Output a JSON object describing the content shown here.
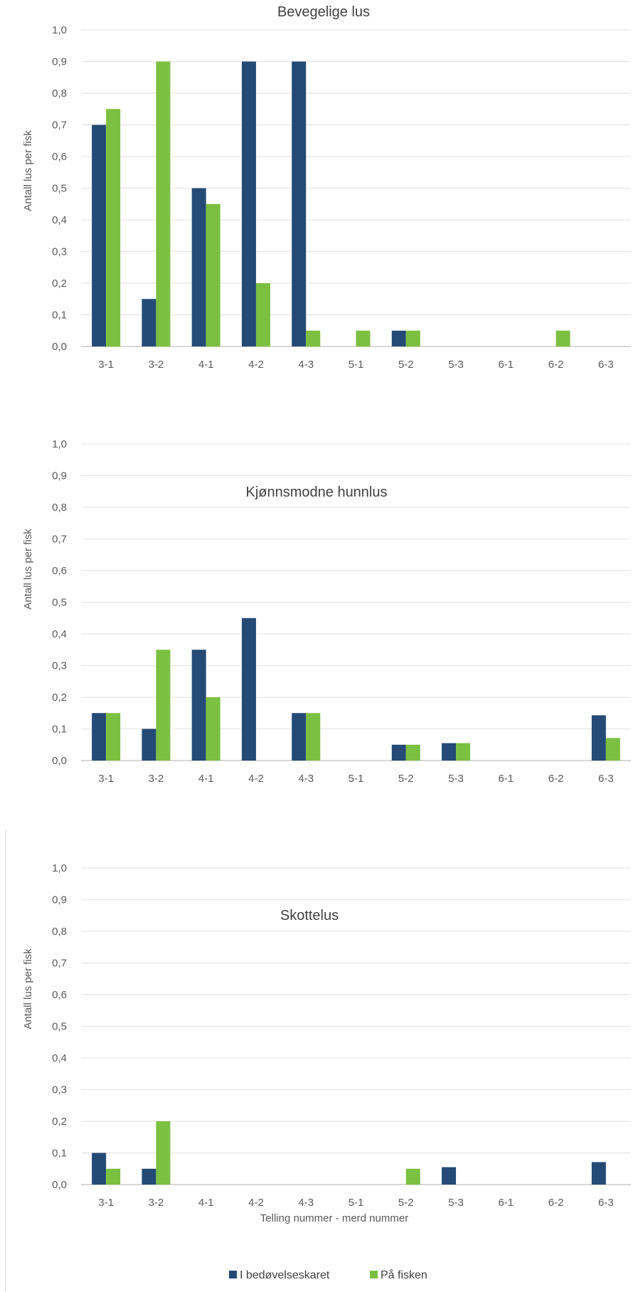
{
  "chart_data": [
    {
      "type": "bar",
      "title": "Bevegelige lus",
      "ylabel": "Antall lus per fisk",
      "xlabel": "",
      "ylim": [
        0,
        1.0
      ],
      "yticks": [
        "0,0",
        "0,1",
        "0,2",
        "0,3",
        "0,4",
        "0,5",
        "0,6",
        "0,7",
        "0,8",
        "0,9",
        "1,0"
      ],
      "grid": true,
      "categories": [
        "3-1",
        "3-2",
        "4-1",
        "4-2",
        "4-3",
        "5-1",
        "5-2",
        "5-3",
        "6-1",
        "6-2",
        "6-3"
      ],
      "series": [
        {
          "name": "I bedøvelseskaret",
          "values": [
            0.7,
            0.15,
            0.5,
            0.9,
            0.9,
            0,
            0.05,
            0,
            0,
            0,
            0
          ]
        },
        {
          "name": "På fisken",
          "values": [
            0.75,
            0.9,
            0.45,
            0.2,
            0.05,
            0.05,
            0.05,
            0,
            0,
            0.05,
            0
          ]
        }
      ]
    },
    {
      "type": "bar",
      "title": "Kjønnsmodne hunnlus",
      "ylabel": "Antall lus per fisk",
      "xlabel": "",
      "ylim": [
        0,
        1.0
      ],
      "yticks": [
        "0,0",
        "0,1",
        "0,2",
        "0,3",
        "0,4",
        "0,5",
        "0,6",
        "0,7",
        "0,8",
        "0,9",
        "1,0"
      ],
      "grid": true,
      "categories": [
        "3-1",
        "3-2",
        "4-1",
        "4-2",
        "4-3",
        "5-1",
        "5-2",
        "5-3",
        "6-1",
        "6-2",
        "6-3"
      ],
      "series": [
        {
          "name": "I bedøvelseskaret",
          "values": [
            0.15,
            0.1,
            0.35,
            0.45,
            0.15,
            0,
            0.05,
            0.055,
            0,
            0,
            0.143
          ]
        },
        {
          "name": "På fisken",
          "values": [
            0.15,
            0.35,
            0.2,
            0,
            0.15,
            0,
            0.05,
            0.055,
            0,
            0,
            0.071
          ]
        }
      ]
    },
    {
      "type": "bar",
      "title": "Skottelus",
      "ylabel": "Antall lus per fisk",
      "xlabel": "Telling nummer - merd nummer",
      "ylim": [
        0,
        1.0
      ],
      "yticks": [
        "0,0",
        "0,1",
        "0,2",
        "0,3",
        "0,4",
        "0,5",
        "0,6",
        "0,7",
        "0,8",
        "0,9",
        "1,0"
      ],
      "grid": true,
      "categories": [
        "3-1",
        "3-2",
        "4-1",
        "4-2",
        "4-3",
        "5-1",
        "5-2",
        "5-3",
        "6-1",
        "6-2",
        "6-3"
      ],
      "series": [
        {
          "name": "I bedøvelseskaret",
          "values": [
            0.1,
            0.05,
            0,
            0,
            0,
            0,
            0,
            0.055,
            0,
            0,
            0.071
          ]
        },
        {
          "name": "På fisken",
          "values": [
            0.05,
            0.2,
            0,
            0,
            0,
            0,
            0.05,
            0,
            0,
            0,
            0
          ]
        }
      ]
    }
  ],
  "legend": {
    "position": "bottom",
    "items": [
      {
        "label": "I bedøvelseskaret",
        "color": "#254a76"
      },
      {
        "label": "På fisken",
        "color": "#7cc041"
      }
    ]
  },
  "colors": {
    "series1": "#254a76",
    "series2": "#7cc041",
    "grid": "#e6e6e6"
  }
}
